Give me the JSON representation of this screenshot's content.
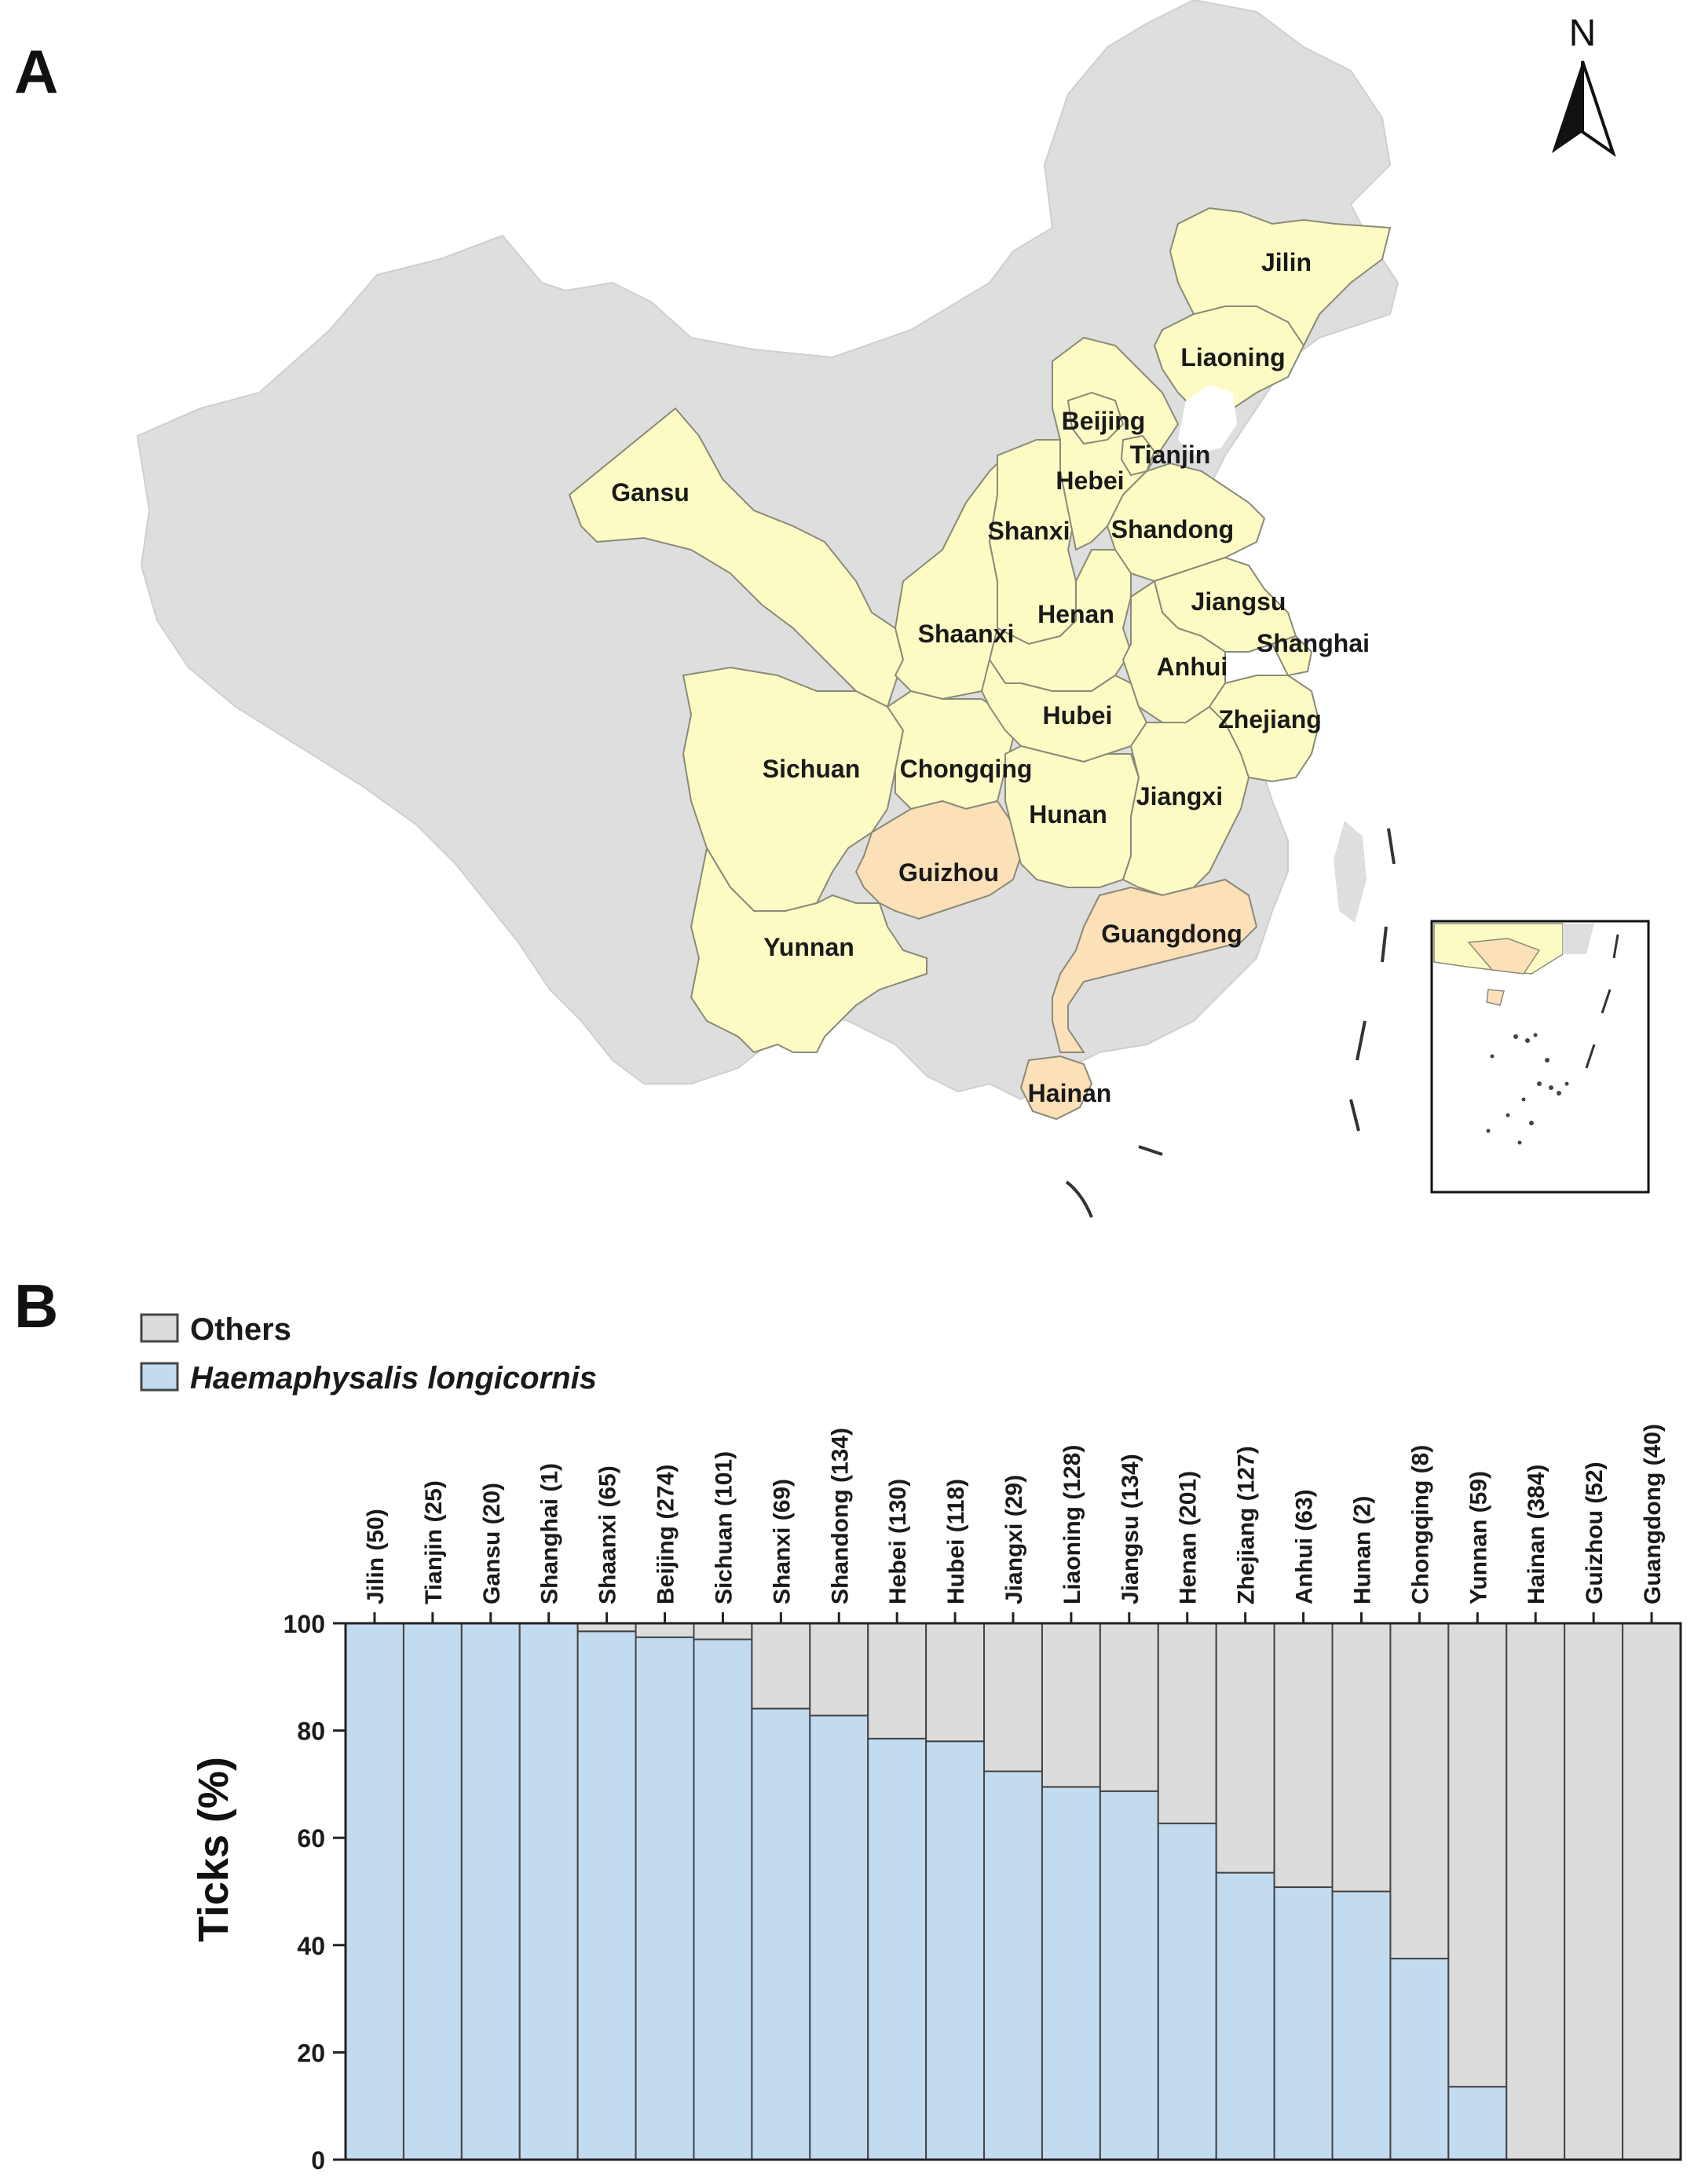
{
  "panel_a": {
    "letter": "A",
    "north_label": "N",
    "colors": {
      "background_country": "#dedede",
      "province_main": "#fdfbc4",
      "province_highlight": "#fbe0b8",
      "border": "#8a8a7a"
    },
    "provinces": [
      {
        "name": "Jilin",
        "group": "main"
      },
      {
        "name": "Liaoning",
        "group": "main"
      },
      {
        "name": "Beijing",
        "group": "main"
      },
      {
        "name": "Tianjin",
        "group": "main"
      },
      {
        "name": "Hebei",
        "group": "main"
      },
      {
        "name": "Gansu",
        "group": "main"
      },
      {
        "name": "Shanxi",
        "group": "main"
      },
      {
        "name": "Shandong",
        "group": "main"
      },
      {
        "name": "Jiangsu",
        "group": "main"
      },
      {
        "name": "Shanghai",
        "group": "main"
      },
      {
        "name": "Shaanxi",
        "group": "main"
      },
      {
        "name": "Henan",
        "group": "main"
      },
      {
        "name": "Anhui",
        "group": "main"
      },
      {
        "name": "Hubei",
        "group": "main"
      },
      {
        "name": "Zhejiang",
        "group": "main"
      },
      {
        "name": "Sichuan",
        "group": "main"
      },
      {
        "name": "Chongqing",
        "group": "main"
      },
      {
        "name": "Jiangxi",
        "group": "main"
      },
      {
        "name": "Hunan",
        "group": "main"
      },
      {
        "name": "Guizhou",
        "group": "highlight"
      },
      {
        "name": "Yunnan",
        "group": "main"
      },
      {
        "name": "Guangdong",
        "group": "highlight"
      },
      {
        "name": "Hainan",
        "group": "highlight"
      }
    ]
  },
  "panel_b": {
    "letter": "B",
    "legend": {
      "others": "Others",
      "species": "Haemaphysalis longicornis"
    },
    "colors": {
      "others": "#dcdcdc",
      "species": "#c3dbef",
      "edge": "#444444"
    }
  },
  "chart_data": {
    "type": "bar",
    "stacked": true,
    "ylabel": "Ticks (%)",
    "ylim": [
      0,
      100
    ],
    "yticks": [
      0,
      20,
      40,
      60,
      80,
      100
    ],
    "grid": false,
    "legend_position": "top-left",
    "categories": [
      "Jilin (50)",
      "Tianjin (25)",
      "Gansu (20)",
      "Shanghai (1)",
      "Shaanxi (65)",
      "Beijing (274)",
      "Sichuan (101)",
      "Shanxi (69)",
      "Shandong (134)",
      "Hebei (130)",
      "Hubei (118)",
      "Jiangxi (29)",
      "Liaoning (128)",
      "Jiangsu (134)",
      "Henan (201)",
      "Zhejiang (127)",
      "Anhui (63)",
      "Hunan (2)",
      "Chongqing (8)",
      "Yunnan (59)",
      "Hainan (384)",
      "Guizhou (52)",
      "Guangdong (40)"
    ],
    "series": [
      {
        "name": "Haemaphysalis longicornis",
        "values": [
          100,
          100,
          100,
          100,
          98.5,
          97.4,
          97.0,
          84.1,
          82.8,
          78.5,
          78.0,
          72.4,
          69.5,
          68.7,
          62.7,
          53.5,
          50.8,
          50.0,
          37.5,
          13.6,
          0,
          0,
          0
        ]
      },
      {
        "name": "Others",
        "values": [
          0,
          0,
          0,
          0,
          1.5,
          2.6,
          3.0,
          15.9,
          17.2,
          21.5,
          22.0,
          27.6,
          30.5,
          31.3,
          37.3,
          46.5,
          49.2,
          50.0,
          62.5,
          86.4,
          100,
          100,
          100
        ]
      }
    ]
  }
}
